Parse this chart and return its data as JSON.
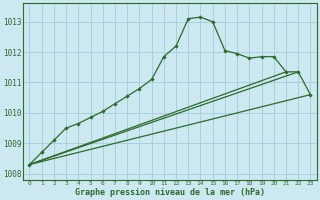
{
  "title": "Graphe pression niveau de la mer (hPa)",
  "bg_color": "#cce8f0",
  "grid_color": "#aacfdf",
  "line_color": "#2d6a2d",
  "xlim": [
    -0.5,
    23.5
  ],
  "ylim": [
    1007.8,
    1013.6
  ],
  "yticks": [
    1008,
    1009,
    1010,
    1011,
    1012,
    1013
  ],
  "xticks": [
    0,
    1,
    2,
    3,
    4,
    5,
    6,
    7,
    8,
    9,
    10,
    11,
    12,
    13,
    14,
    15,
    16,
    17,
    18,
    19,
    20,
    21,
    22,
    23
  ],
  "series_main": [
    1008.3,
    1008.7,
    1009.1,
    1009.5,
    1009.65,
    1009.85,
    1010.05,
    1010.3,
    1010.55,
    1010.8,
    1011.1,
    1011.85,
    1012.2,
    1013.1,
    1013.15,
    1013.0,
    1012.05,
    1011.95,
    1011.8,
    1011.85,
    1011.85,
    1011.35,
    1011.35,
    1010.6
  ],
  "line1_x": [
    0,
    21
  ],
  "line1_y": [
    1008.3,
    1011.35
  ],
  "line2_x": [
    0,
    22
  ],
  "line2_y": [
    1008.3,
    1011.35
  ],
  "line3_x": [
    0,
    23
  ],
  "line3_y": [
    1008.3,
    1010.6
  ],
  "ytick_labels": [
    "1008",
    "1009",
    "1010",
    "1011",
    "1012",
    "1013"
  ]
}
